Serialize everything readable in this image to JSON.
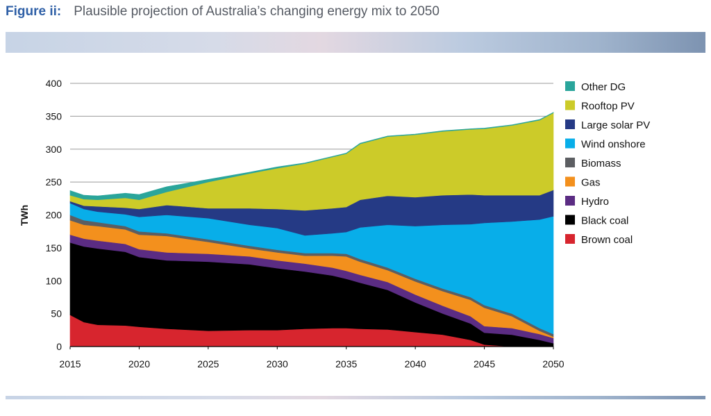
{
  "figure": {
    "label": "Figure ii:",
    "title": "Plausible projection of Australia’s changing energy mix to 2050"
  },
  "chart_data": {
    "type": "area",
    "stacked": true,
    "ylabel": "TWh",
    "xlabel": "",
    "ylim": [
      0,
      400
    ],
    "xlim": [
      2015,
      2050
    ],
    "yticks": [
      0,
      50,
      100,
      150,
      200,
      250,
      300,
      350,
      400
    ],
    "xticks": [
      2015,
      2020,
      2025,
      2030,
      2035,
      2040,
      2045,
      2050
    ],
    "grid": "horizontal",
    "legend_position": "right",
    "x": [
      2015,
      2016,
      2017,
      2019,
      2020,
      2022,
      2025,
      2028,
      2030,
      2032,
      2034,
      2035,
      2036,
      2038,
      2040,
      2042,
      2044,
      2045,
      2047,
      2049,
      2050
    ],
    "series": [
      {
        "name": "Brown coal",
        "color": "#d7252e",
        "values": [
          48,
          37,
          33,
          32,
          30,
          27,
          24,
          25,
          25,
          27,
          28,
          28,
          27,
          26,
          22,
          18,
          10,
          3,
          0,
          0,
          0
        ]
      },
      {
        "name": "Black coal",
        "color": "#000000",
        "values": [
          110,
          115,
          116,
          112,
          106,
          104,
          105,
          100,
          94,
          87,
          80,
          75,
          70,
          60,
          45,
          32,
          25,
          18,
          18,
          10,
          5
        ]
      },
      {
        "name": "Hydro",
        "color": "#5b2c83",
        "values": [
          12,
          12,
          12,
          12,
          12,
          12,
          12,
          12,
          12,
          12,
          12,
          12,
          12,
          12,
          12,
          12,
          11,
          10,
          10,
          9,
          8
        ]
      },
      {
        "name": "Gas",
        "color": "#f3901d",
        "values": [
          22,
          21,
          22,
          22,
          22,
          25,
          18,
          12,
          12,
          12,
          18,
          22,
          20,
          18,
          20,
          22,
          25,
          28,
          18,
          5,
          2
        ]
      },
      {
        "name": "Biomass",
        "color": "#5c5e62",
        "values": [
          8,
          7,
          6,
          5,
          5,
          4,
          4,
          4,
          4,
          4,
          4,
          4,
          4,
          4,
          4,
          4,
          4,
          4,
          4,
          4,
          4
        ]
      },
      {
        "name": "Wind onshore",
        "color": "#08aee9",
        "values": [
          18,
          17,
          16,
          18,
          22,
          28,
          32,
          32,
          33,
          27,
          30,
          33,
          48,
          65,
          80,
          97,
          111,
          125,
          140,
          165,
          179
        ]
      },
      {
        "name": "Large solar PV",
        "color": "#253a85",
        "values": [
          3,
          5,
          8,
          10,
          12,
          15,
          15,
          25,
          29,
          38,
          38,
          38,
          42,
          44,
          44,
          45,
          45,
          42,
          40,
          37,
          40
        ]
      },
      {
        "name": "Rooftop PV",
        "color": "#cccb29",
        "values": [
          9,
          10,
          10,
          15,
          14,
          20,
          40,
          53,
          62,
          71,
          78,
          81,
          85,
          90,
          95,
          97,
          99,
          101,
          106,
          114,
          117
        ]
      },
      {
        "name": "Other DG",
        "color": "#2aa59b",
        "values": [
          7,
          6,
          6,
          7,
          8,
          8,
          4,
          2,
          2,
          1,
          1,
          1,
          1,
          1,
          1,
          1,
          1,
          1,
          1,
          1,
          1
        ]
      }
    ]
  }
}
